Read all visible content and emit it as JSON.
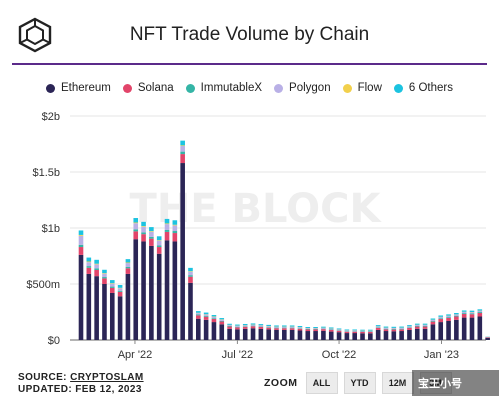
{
  "header": {
    "title": "NFT Trade Volume by Chain",
    "logo_icon": "the-block-cube-logo-icon"
  },
  "accent_color": "#5b2a8a",
  "watermark": "THE BLOCK",
  "legend": [
    {
      "label": "Ethereum",
      "color": "#2b2556"
    },
    {
      "label": "Solana",
      "color": "#e2456a"
    },
    {
      "label": "ImmutableX",
      "color": "#35b5a6"
    },
    {
      "label": "Polygon",
      "color": "#b9b0e6"
    },
    {
      "label": "Flow",
      "color": "#f2d04c"
    },
    {
      "label": "6 Others",
      "color": "#1cc3e0"
    }
  ],
  "footer": {
    "source_prefix": "SOURCE:",
    "source_name": "CRYPTOSLAM",
    "updated": "UPDATED: FEB 12, 2023"
  },
  "zoom": {
    "label": "ZOOM",
    "buttons": [
      "ALL",
      "YTD",
      "12M",
      "3M"
    ]
  },
  "overlay_badge": "宝王小号",
  "chart_data": {
    "type": "bar",
    "stacked": true,
    "grid": true,
    "legend_position": "top",
    "y_ticks": [
      "$0",
      "$500m",
      "$1b",
      "$1.5b",
      "$2b"
    ],
    "x_ticks": [
      "Apr '22",
      "Jul '22",
      "Oct '22",
      "Jan '23"
    ],
    "ylim": [
      0,
      2000
    ],
    "y_units": "$m",
    "x_start": "2022-01-02",
    "x_interval": "week",
    "series": [
      {
        "name": "Ethereum",
        "color": "#2b2556",
        "values": [
          760,
          590,
          570,
          500,
          420,
          390,
          590,
          900,
          880,
          840,
          770,
          890,
          880,
          1580,
          510,
          190,
          180,
          160,
          140,
          100,
          95,
          100,
          105,
          100,
          95,
          90,
          90,
          90,
          85,
          80,
          80,
          82,
          75,
          70,
          62,
          62,
          60,
          60,
          90,
          80,
          78,
          80,
          90,
          100,
          100,
          140,
          160,
          170,
          180,
          200,
          200,
          210,
          20
        ]
      },
      {
        "name": "Solana",
        "color": "#e2456a",
        "values": [
          70,
          55,
          55,
          50,
          45,
          40,
          50,
          70,
          65,
          65,
          60,
          75,
          75,
          80,
          55,
          30,
          28,
          28,
          25,
          20,
          18,
          18,
          18,
          17,
          15,
          15,
          15,
          15,
          15,
          14,
          14,
          15,
          15,
          13,
          12,
          12,
          12,
          12,
          18,
          15,
          15,
          15,
          18,
          20,
          20,
          24,
          28,
          28,
          30,
          32,
          30,
          32,
          5
        ]
      },
      {
        "name": "ImmutableX",
        "color": "#35b5a6",
        "values": [
          20,
          15,
          15,
          12,
          12,
          10,
          12,
          18,
          16,
          16,
          14,
          18,
          18,
          22,
          14,
          8,
          8,
          7,
          6,
          5,
          5,
          5,
          5,
          5,
          5,
          5,
          5,
          5,
          5,
          4,
          4,
          4,
          4,
          4,
          4,
          4,
          4,
          4,
          5,
          5,
          5,
          5,
          5,
          6,
          6,
          6,
          7,
          7,
          7,
          8,
          8,
          8,
          1
        ]
      },
      {
        "name": "Polygon",
        "color": "#b9b0e6",
        "values": [
          80,
          35,
          35,
          30,
          25,
          22,
          35,
          55,
          50,
          45,
          42,
          52,
          50,
          50,
          30,
          12,
          12,
          12,
          10,
          8,
          8,
          8,
          8,
          8,
          8,
          8,
          8,
          8,
          8,
          7,
          7,
          7,
          7,
          6,
          6,
          6,
          6,
          6,
          8,
          8,
          8,
          8,
          8,
          8,
          8,
          9,
          10,
          10,
          10,
          10,
          10,
          10,
          2
        ]
      },
      {
        "name": "Flow",
        "color": "#f2d04c",
        "values": [
          8,
          6,
          6,
          5,
          5,
          4,
          5,
          6,
          6,
          6,
          5,
          6,
          6,
          6,
          5,
          3,
          3,
          3,
          3,
          2,
          2,
          2,
          2,
          2,
          2,
          2,
          2,
          2,
          2,
          2,
          2,
          2,
          2,
          2,
          2,
          2,
          2,
          2,
          2,
          2,
          2,
          2,
          2,
          2,
          2,
          2,
          2,
          2,
          2,
          2,
          2,
          2,
          1
        ]
      },
      {
        "name": "6 Others",
        "color": "#1cc3e0",
        "values": [
          40,
          35,
          35,
          30,
          28,
          25,
          30,
          40,
          38,
          36,
          35,
          40,
          40,
          42,
          30,
          15,
          14,
          13,
          12,
          10,
          10,
          10,
          10,
          10,
          10,
          10,
          10,
          10,
          10,
          9,
          9,
          9,
          9,
          8,
          8,
          8,
          8,
          8,
          10,
          10,
          10,
          10,
          10,
          10,
          10,
          11,
          12,
          12,
          12,
          12,
          12,
          12,
          2
        ]
      }
    ]
  }
}
